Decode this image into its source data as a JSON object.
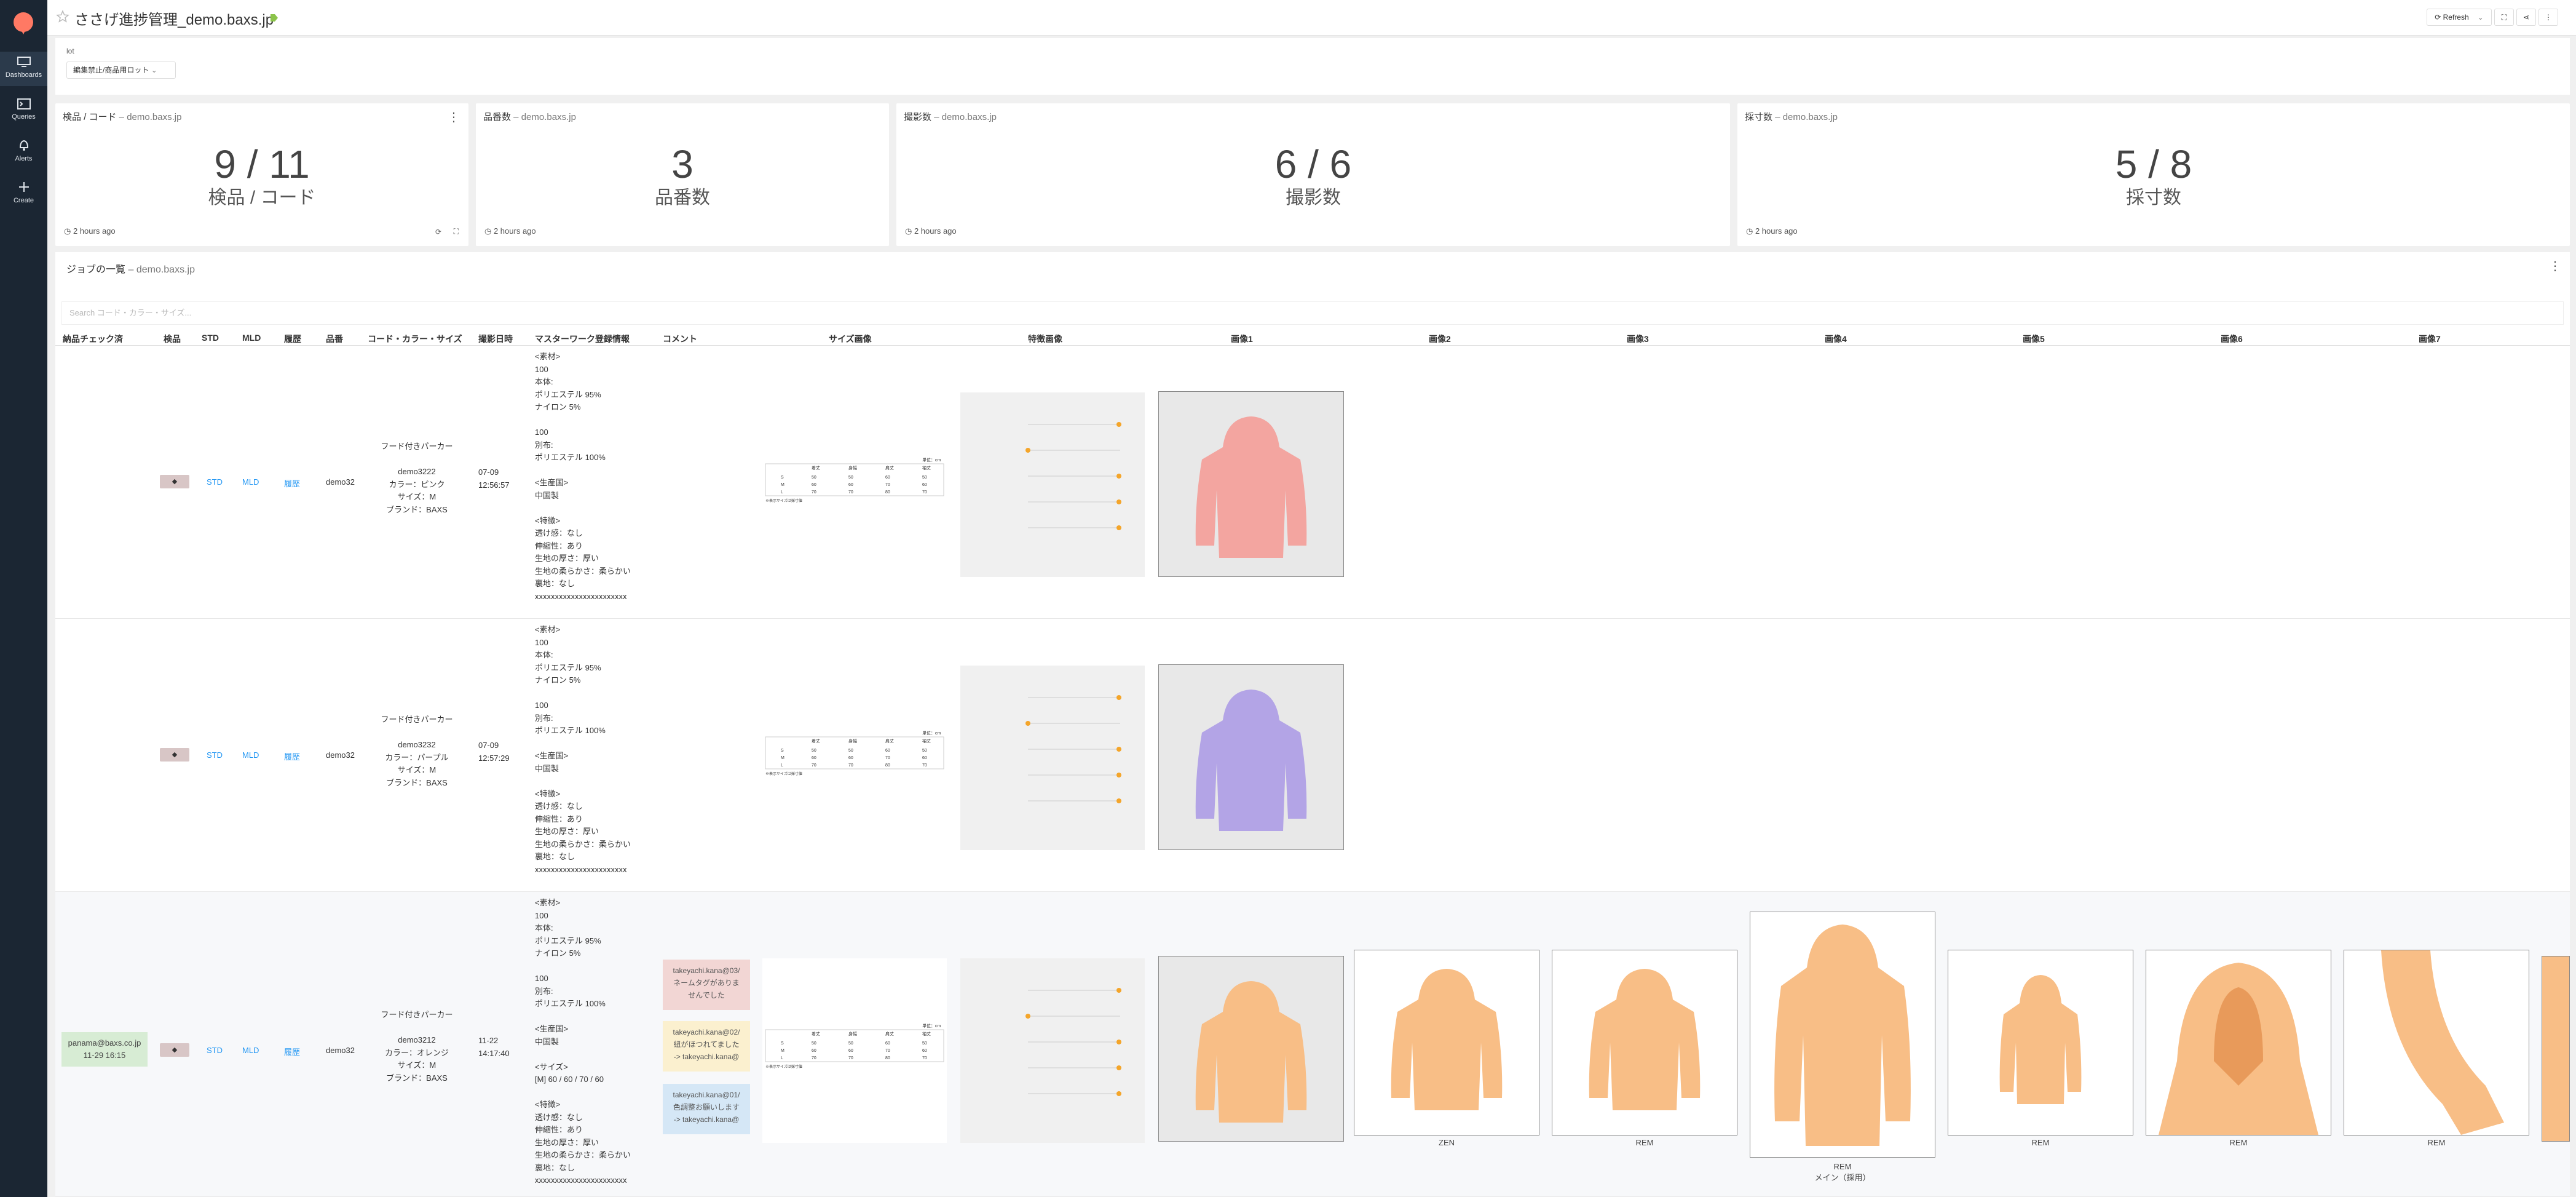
{
  "sidebar": {
    "items": [
      {
        "label": "Dashboards",
        "icon": "monitor-icon"
      },
      {
        "label": "Queries",
        "icon": "code-icon"
      },
      {
        "label": "Alerts",
        "icon": "bell-icon"
      },
      {
        "label": "Create",
        "icon": "plus-icon"
      }
    ]
  },
  "header": {
    "title": "ささげ進捗管理_demo.baxs.jp",
    "refresh_label": "Refresh"
  },
  "filter": {
    "label": "lot",
    "value": "編集禁止/商品用ロット"
  },
  "widgets": [
    {
      "title": "検品 / コード",
      "source": "demo.baxs.jp",
      "value": "9 / 11",
      "label": "検品 / コード",
      "ago": "2 hours ago"
    },
    {
      "title": "品番数",
      "source": "demo.baxs.jp",
      "value": "3",
      "label": "品番数",
      "ago": "2 hours ago"
    },
    {
      "title": "撮影数",
      "source": "demo.baxs.jp",
      "value": "6 / 6",
      "label": "撮影数",
      "ago": "2 hours ago"
    },
    {
      "title": "採寸数",
      "source": "demo.baxs.jp",
      "value": "5 / 8",
      "label": "採寸数",
      "ago": "2 hours ago"
    }
  ],
  "jobs": {
    "title": "ジョブの一覧",
    "source": "demo.baxs.jp",
    "search_placeholder": "Search コード・カラー・サイズ...",
    "columns": [
      "納品チェック済",
      "検品",
      "STD",
      "MLD",
      "履歴",
      "品番",
      "コード・カラー・サイズ",
      "撮影日時",
      "マスターワーク登録情報",
      "コメント",
      "サイズ画像",
      "特徴画像",
      "画像1",
      "画像2",
      "画像3",
      "画像4",
      "画像5",
      "画像6",
      "画像7"
    ],
    "rows": [
      {
        "delivery": "",
        "std": "STD",
        "mld": "MLD",
        "history": "履歴",
        "hinban": "demo32",
        "code": "フード付きパーカー\n\ndemo3222\nカラー：ピンク\nサイズ：M\nブランド：BAXS",
        "date": "07-09\n12:56:57",
        "master": "<素材>\n100\n本体:\nポリエステル 95%\nナイロン 5%\n\n100\n別布:\nポリエステル 100%\n\n<生産国>\n中国製\n\n<特徴>\n透け感：なし\n伸縮性：あり\n生地の厚さ：厚い\n生地の柔らかさ：柔らかい\n裏地：なし\nxxxxxxxxxxxxxxxxxxxxxxx",
        "comments": []
      },
      {
        "delivery": "",
        "std": "STD",
        "mld": "MLD",
        "history": "履歴",
        "hinban": "demo32",
        "code": "フード付きパーカー\n\ndemo3232\nカラー：パープル\nサイズ：M\nブランド：BAXS",
        "date": "07-09\n12:57:29",
        "master": "<素材>\n100\n本体:\nポリエステル 95%\nナイロン 5%\n\n100\n別布:\nポリエステル 100%\n\n<生産国>\n中国製\n\n<特徴>\n透け感：なし\n伸縮性：あり\n生地の厚さ：厚い\n生地の柔らかさ：柔らかい\n裏地：なし\nxxxxxxxxxxxxxxxxxxxxxxx",
        "comments": []
      },
      {
        "delivery": "panama@baxs.co.jp\n11-29 16:15",
        "std": "STD",
        "mld": "MLD",
        "history": "履歴",
        "hinban": "demo32",
        "code": "フード付きパーカー\n\ndemo3212\nカラー：オレンジ\nサイズ：M\nブランド：BAXS",
        "date": "11-22\n14:17:40",
        "master": "<素材>\n100\n本体:\nポリエステル 95%\nナイロン 5%\n\n100\n別布:\nポリエステル 100%\n\n<生産国>\n中国製\n\n<サイズ>\n[M] 60 / 60 / 70 / 60\n\n<特徴>\n透け感：なし\n伸縮性：あり\n生地の厚さ：厚い\n生地の柔らかさ：柔らかい\n裏地：なし\nxxxxxxxxxxxxxxxxxxxxxxx",
        "comments": [
          "takeyachi.kana@03/\nネームタグがありま\nせんでした",
          "takeyachi.kana@02/\n紐がほつれてました\n-> takeyachi.kana@",
          "takeyachi.kana@01/\n色調整お願いします\n-> takeyachi.kana@"
        ],
        "captions": [
          "ZEN",
          "REM",
          "REM\nメイン（採用）",
          "REM",
          "REM",
          "REM"
        ]
      }
    ]
  },
  "colors": {
    "sidebar": "#1b2633",
    "pink": "#f3a5a0",
    "purple": "#b3a4e6",
    "orange": "#f8be86",
    "accent": "#2196f3"
  }
}
